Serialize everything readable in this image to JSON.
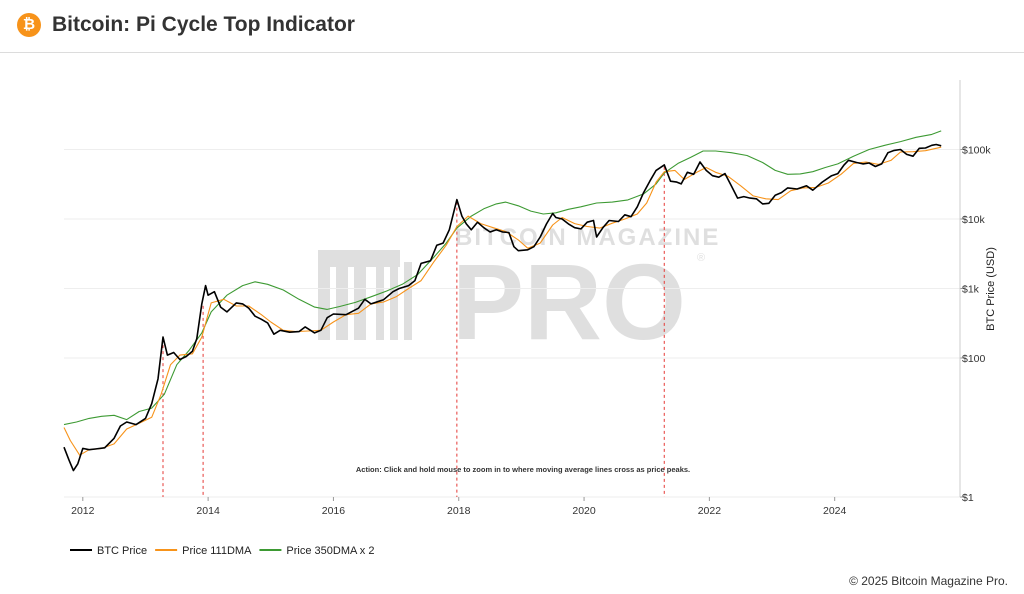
{
  "header": {
    "logo_glyph": "₿",
    "title": "Bitcoin: Pi Cycle Top Indicator"
  },
  "footer": {
    "copyright": "© 2025 Bitcoin Magazine Pro."
  },
  "watermark": {
    "line1": "BITCOIN MAGAZINE",
    "line2": "PRO",
    "registered": "®"
  },
  "chart_data": {
    "type": "line",
    "title": "",
    "xlabel": "",
    "ylabel": "BTC Price (USD)",
    "yscale": "log",
    "ylim": [
      1,
      1000000
    ],
    "xlim": [
      2011.7,
      2026.0
    ],
    "x_ticks": [
      2012,
      2014,
      2016,
      2018,
      2020,
      2022,
      2024
    ],
    "y_ticks": [
      {
        "value": 1,
        "label": "$1"
      },
      {
        "value": 100,
        "label": "$100"
      },
      {
        "value": 1000,
        "label": "$1k"
      },
      {
        "value": 10000,
        "label": "$10k"
      },
      {
        "value": 100000,
        "label": "$100k"
      }
    ],
    "annotation": "Action: Click and hold mouse to zoom in to where moving average lines cross as price peaks.",
    "legend_position": "bottom-left",
    "cross_markers": [
      2013.28,
      2013.92,
      2017.97,
      2021.28
    ],
    "series": [
      {
        "name": "BTC Price",
        "color": "#000000",
        "points": [
          [
            2011.7,
            5.2
          ],
          [
            2011.78,
            3.4
          ],
          [
            2011.85,
            2.4
          ],
          [
            2011.92,
            3.0
          ],
          [
            2012.0,
            5.0
          ],
          [
            2012.1,
            4.8
          ],
          [
            2012.2,
            4.9
          ],
          [
            2012.35,
            5.1
          ],
          [
            2012.5,
            7.0
          ],
          [
            2012.6,
            10.5
          ],
          [
            2012.7,
            12.0
          ],
          [
            2012.85,
            11.0
          ],
          [
            2013.0,
            13.5
          ],
          [
            2013.1,
            22
          ],
          [
            2013.2,
            50
          ],
          [
            2013.28,
            200
          ],
          [
            2013.35,
            110
          ],
          [
            2013.45,
            120
          ],
          [
            2013.55,
            95
          ],
          [
            2013.65,
            105
          ],
          [
            2013.75,
            125
          ],
          [
            2013.82,
            190
          ],
          [
            2013.9,
            600
          ],
          [
            2013.96,
            1100
          ],
          [
            2014.0,
            800
          ],
          [
            2014.1,
            900
          ],
          [
            2014.2,
            540
          ],
          [
            2014.3,
            460
          ],
          [
            2014.45,
            620
          ],
          [
            2014.55,
            600
          ],
          [
            2014.65,
            520
          ],
          [
            2014.75,
            400
          ],
          [
            2014.85,
            360
          ],
          [
            2014.95,
            320
          ],
          [
            2015.05,
            220
          ],
          [
            2015.15,
            250
          ],
          [
            2015.3,
            235
          ],
          [
            2015.45,
            240
          ],
          [
            2015.55,
            280
          ],
          [
            2015.7,
            230
          ],
          [
            2015.8,
            250
          ],
          [
            2015.9,
            380
          ],
          [
            2016.0,
            430
          ],
          [
            2016.2,
            420
          ],
          [
            2016.4,
            520
          ],
          [
            2016.5,
            700
          ],
          [
            2016.6,
            600
          ],
          [
            2016.8,
            690
          ],
          [
            2016.95,
            900
          ],
          [
            2017.05,
            1000
          ],
          [
            2017.2,
            1100
          ],
          [
            2017.3,
            1300
          ],
          [
            2017.4,
            2300
          ],
          [
            2017.55,
            2500
          ],
          [
            2017.65,
            4200
          ],
          [
            2017.75,
            4500
          ],
          [
            2017.85,
            7000
          ],
          [
            2017.97,
            19000
          ],
          [
            2018.05,
            11000
          ],
          [
            2018.12,
            8500
          ],
          [
            2018.2,
            7000
          ],
          [
            2018.3,
            9000
          ],
          [
            2018.4,
            7500
          ],
          [
            2018.5,
            6500
          ],
          [
            2018.6,
            7000
          ],
          [
            2018.7,
            6500
          ],
          [
            2018.8,
            6400
          ],
          [
            2018.88,
            4000
          ],
          [
            2018.95,
            3500
          ],
          [
            2019.1,
            3600
          ],
          [
            2019.2,
            4000
          ],
          [
            2019.3,
            5500
          ],
          [
            2019.4,
            8500
          ],
          [
            2019.5,
            12000
          ],
          [
            2019.55,
            10500
          ],
          [
            2019.65,
            10000
          ],
          [
            2019.75,
            8500
          ],
          [
            2019.85,
            7500
          ],
          [
            2019.95,
            7200
          ],
          [
            2020.05,
            9000
          ],
          [
            2020.15,
            9500
          ],
          [
            2020.2,
            5500
          ],
          [
            2020.3,
            7500
          ],
          [
            2020.4,
            9500
          ],
          [
            2020.55,
            9200
          ],
          [
            2020.65,
            11500
          ],
          [
            2020.75,
            10800
          ],
          [
            2020.85,
            15000
          ],
          [
            2020.95,
            24000
          ],
          [
            2021.05,
            35000
          ],
          [
            2021.15,
            50000
          ],
          [
            2021.28,
            60000
          ],
          [
            2021.38,
            35000
          ],
          [
            2021.48,
            34000
          ],
          [
            2021.55,
            32000
          ],
          [
            2021.65,
            47000
          ],
          [
            2021.75,
            44000
          ],
          [
            2021.85,
            66000
          ],
          [
            2021.95,
            50000
          ],
          [
            2022.05,
            42000
          ],
          [
            2022.15,
            40000
          ],
          [
            2022.25,
            45000
          ],
          [
            2022.35,
            30000
          ],
          [
            2022.45,
            20000
          ],
          [
            2022.55,
            21000
          ],
          [
            2022.65,
            20000
          ],
          [
            2022.75,
            19500
          ],
          [
            2022.85,
            16500
          ],
          [
            2022.95,
            16800
          ],
          [
            2023.05,
            22000
          ],
          [
            2023.15,
            24000
          ],
          [
            2023.25,
            28000
          ],
          [
            2023.4,
            27000
          ],
          [
            2023.55,
            30000
          ],
          [
            2023.65,
            26000
          ],
          [
            2023.8,
            34000
          ],
          [
            2023.95,
            42000
          ],
          [
            2024.05,
            45000
          ],
          [
            2024.15,
            60000
          ],
          [
            2024.22,
            70000
          ],
          [
            2024.35,
            65000
          ],
          [
            2024.45,
            62000
          ],
          [
            2024.55,
            64000
          ],
          [
            2024.65,
            57000
          ],
          [
            2024.75,
            62000
          ],
          [
            2024.85,
            90000
          ],
          [
            2024.95,
            97000
          ],
          [
            2025.05,
            100000
          ],
          [
            2025.15,
            85000
          ],
          [
            2025.25,
            80000
          ],
          [
            2025.35,
            104000
          ],
          [
            2025.45,
            105000
          ],
          [
            2025.55,
            115000
          ],
          [
            2025.62,
            118000
          ],
          [
            2025.7,
            113000
          ]
        ]
      },
      {
        "name": "Price 111DMA",
        "color": "#f7931a",
        "points": [
          [
            2011.7,
            10
          ],
          [
            2011.8,
            6.5
          ],
          [
            2011.95,
            4.0
          ],
          [
            2012.1,
            4.8
          ],
          [
            2012.3,
            5.0
          ],
          [
            2012.5,
            5.8
          ],
          [
            2012.7,
            9.5
          ],
          [
            2012.9,
            11.5
          ],
          [
            2013.1,
            14
          ],
          [
            2013.25,
            30
          ],
          [
            2013.4,
            80
          ],
          [
            2013.55,
            110
          ],
          [
            2013.75,
            115
          ],
          [
            2013.9,
            200
          ],
          [
            2014.05,
            620
          ],
          [
            2014.25,
            700
          ],
          [
            2014.45,
            560
          ],
          [
            2014.65,
            560
          ],
          [
            2014.85,
            420
          ],
          [
            2015.0,
            330
          ],
          [
            2015.2,
            250
          ],
          [
            2015.4,
            240
          ],
          [
            2015.6,
            245
          ],
          [
            2015.8,
            250
          ],
          [
            2016.0,
            330
          ],
          [
            2016.2,
            420
          ],
          [
            2016.4,
            440
          ],
          [
            2016.6,
            600
          ],
          [
            2016.8,
            640
          ],
          [
            2017.0,
            760
          ],
          [
            2017.2,
            1000
          ],
          [
            2017.4,
            1300
          ],
          [
            2017.6,
            2400
          ],
          [
            2017.8,
            4200
          ],
          [
            2017.97,
            7800
          ],
          [
            2018.15,
            11000
          ],
          [
            2018.35,
            8600
          ],
          [
            2018.55,
            7500
          ],
          [
            2018.75,
            6600
          ],
          [
            2018.95,
            5000
          ],
          [
            2019.1,
            3800
          ],
          [
            2019.3,
            4500
          ],
          [
            2019.5,
            8200
          ],
          [
            2019.65,
            10500
          ],
          [
            2019.85,
            8600
          ],
          [
            2020.05,
            7800
          ],
          [
            2020.25,
            7400
          ],
          [
            2020.45,
            8700
          ],
          [
            2020.65,
            10000
          ],
          [
            2020.85,
            11800
          ],
          [
            2021.0,
            17000
          ],
          [
            2021.15,
            34000
          ],
          [
            2021.28,
            48000
          ],
          [
            2021.45,
            50000
          ],
          [
            2021.6,
            37000
          ],
          [
            2021.8,
            47000
          ],
          [
            2021.95,
            55000
          ],
          [
            2022.1,
            47000
          ],
          [
            2022.3,
            41000
          ],
          [
            2022.5,
            30000
          ],
          [
            2022.7,
            21500
          ],
          [
            2022.9,
            19500
          ],
          [
            2023.1,
            19000
          ],
          [
            2023.3,
            25500
          ],
          [
            2023.5,
            28000
          ],
          [
            2023.7,
            28500
          ],
          [
            2023.9,
            33000
          ],
          [
            2024.1,
            44000
          ],
          [
            2024.3,
            63000
          ],
          [
            2024.5,
            66000
          ],
          [
            2024.7,
            61000
          ],
          [
            2024.9,
            70000
          ],
          [
            2025.05,
            92000
          ],
          [
            2025.25,
            93000
          ],
          [
            2025.45,
            96000
          ],
          [
            2025.7,
            108000
          ]
        ]
      },
      {
        "name": "Price 350DMA x 2",
        "color": "#3d9a33",
        "points": [
          [
            2011.7,
            11
          ],
          [
            2011.9,
            12
          ],
          [
            2012.1,
            13.5
          ],
          [
            2012.3,
            14.5
          ],
          [
            2012.5,
            15
          ],
          [
            2012.7,
            13
          ],
          [
            2012.9,
            17
          ],
          [
            2013.1,
            19
          ],
          [
            2013.3,
            30
          ],
          [
            2013.5,
            80
          ],
          [
            2013.7,
            130
          ],
          [
            2013.9,
            230
          ],
          [
            2014.05,
            460
          ],
          [
            2014.3,
            800
          ],
          [
            2014.55,
            1100
          ],
          [
            2014.75,
            1250
          ],
          [
            2014.95,
            1150
          ],
          [
            2015.2,
            950
          ],
          [
            2015.45,
            700
          ],
          [
            2015.7,
            540
          ],
          [
            2015.9,
            500
          ],
          [
            2016.1,
            550
          ],
          [
            2016.35,
            630
          ],
          [
            2016.6,
            760
          ],
          [
            2016.85,
            920
          ],
          [
            2017.1,
            1150
          ],
          [
            2017.35,
            1600
          ],
          [
            2017.6,
            2800
          ],
          [
            2017.8,
            4500
          ],
          [
            2017.97,
            7400
          ],
          [
            2018.2,
            11000
          ],
          [
            2018.4,
            14000
          ],
          [
            2018.6,
            16500
          ],
          [
            2018.75,
            17500
          ],
          [
            2018.95,
            15500
          ],
          [
            2019.15,
            13000
          ],
          [
            2019.35,
            11800
          ],
          [
            2019.55,
            12300
          ],
          [
            2019.75,
            13800
          ],
          [
            2019.95,
            15000
          ],
          [
            2020.2,
            17000
          ],
          [
            2020.45,
            17500
          ],
          [
            2020.7,
            18800
          ],
          [
            2020.95,
            23000
          ],
          [
            2021.15,
            32000
          ],
          [
            2021.28,
            46000
          ],
          [
            2021.5,
            63000
          ],
          [
            2021.7,
            77000
          ],
          [
            2021.9,
            95000
          ],
          [
            2022.1,
            95000
          ],
          [
            2022.35,
            90000
          ],
          [
            2022.6,
            82000
          ],
          [
            2022.85,
            65000
          ],
          [
            2023.05,
            50000
          ],
          [
            2023.25,
            44000
          ],
          [
            2023.45,
            44500
          ],
          [
            2023.65,
            48000
          ],
          [
            2023.85,
            55000
          ],
          [
            2024.05,
            62000
          ],
          [
            2024.3,
            80000
          ],
          [
            2024.55,
            100000
          ],
          [
            2024.8,
            115000
          ],
          [
            2025.05,
            130000
          ],
          [
            2025.3,
            150000
          ],
          [
            2025.55,
            165000
          ],
          [
            2025.7,
            185000
          ]
        ]
      }
    ]
  }
}
